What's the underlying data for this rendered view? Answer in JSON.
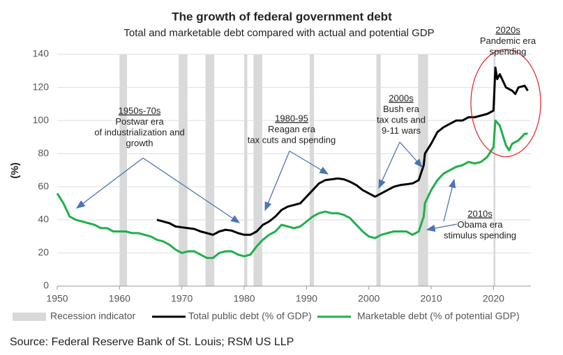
{
  "chart_data": {
    "type": "line",
    "title": "The growth of federal government debt",
    "subtitle": "Total and marketable debt compared with actual and potential GDP",
    "y_label": "(%)",
    "source": "Source: Federal Reserve Bank of St. Louis; RSM US LLP",
    "xlim": [
      1950,
      2026
    ],
    "xticks": [
      1950,
      1960,
      1970,
      1980,
      1990,
      2000,
      2010,
      2020
    ],
    "ylim": [
      0,
      140
    ],
    "yticks": [
      0,
      20,
      40,
      60,
      80,
      100,
      120,
      140
    ],
    "grid": true,
    "recessions": {
      "name": "Recession indicator",
      "color": "#d9d9d9",
      "periods": [
        [
          1960,
          1961.2
        ],
        [
          1969.5,
          1970.9
        ],
        [
          1973.8,
          1975.2
        ],
        [
          1980,
          1980.5
        ],
        [
          1981.5,
          1982.9
        ],
        [
          1990.5,
          1991.2
        ],
        [
          2001.2,
          2001.9
        ],
        [
          2007.9,
          2009.5
        ],
        [
          2020,
          2020.3
        ]
      ]
    },
    "series": [
      {
        "name": "Total public debt (% of GDP)",
        "color": "#000000",
        "x": [
          1966,
          1967,
          1968,
          1969,
          1970,
          1971,
          1972,
          1973,
          1974,
          1975,
          1976,
          1977,
          1978,
          1979,
          1980,
          1981,
          1982,
          1983,
          1984,
          1985,
          1986,
          1987,
          1988,
          1989,
          1990,
          1991,
          1992,
          1993,
          1994,
          1995,
          1996,
          1997,
          1998,
          1999,
          2000,
          2001,
          2002,
          2003,
          2004,
          2005,
          2006,
          2007,
          2008,
          2008.8,
          2009,
          2010,
          2011,
          2012,
          2013,
          2014,
          2015,
          2016,
          2017,
          2018,
          2019,
          2020,
          2020.3,
          2020.6,
          2021,
          2022,
          2023,
          2023.5,
          2024,
          2025,
          2025.5
        ],
        "values": [
          40,
          39,
          38,
          36,
          35.5,
          35,
          34.5,
          33,
          32,
          31,
          33,
          34,
          33.5,
          32,
          31,
          31,
          33,
          37,
          39,
          42,
          46,
          48,
          49,
          50,
          54,
          58,
          62,
          64,
          64.5,
          65,
          64.5,
          63,
          61,
          58,
          56,
          54,
          56,
          58,
          60,
          61,
          61.5,
          62,
          64,
          73,
          80,
          86,
          93,
          96,
          98,
          100,
          100,
          102,
          102,
          103,
          104,
          106,
          132,
          125,
          128,
          120,
          118,
          116,
          120,
          121,
          118
        ]
      },
      {
        "name": "Marketable debt (% of potential GDP)",
        "color": "#1fb04b",
        "x": [
          1950,
          1951,
          1952,
          1953,
          1954,
          1955,
          1956,
          1957,
          1958,
          1959,
          1960,
          1961,
          1962,
          1963,
          1964,
          1965,
          1966,
          1967,
          1968,
          1969,
          1970,
          1971,
          1972,
          1973,
          1974,
          1975,
          1976,
          1977,
          1978,
          1979,
          1980,
          1981,
          1982,
          1983,
          1984,
          1985,
          1986,
          1987,
          1988,
          1989,
          1990,
          1991,
          1992,
          1993,
          1994,
          1995,
          1996,
          1997,
          1998,
          1999,
          2000,
          2001,
          2002,
          2003,
          2004,
          2005,
          2006,
          2007,
          2008,
          2008.8,
          2009,
          2010,
          2011,
          2012,
          2013,
          2014,
          2015,
          2016,
          2017,
          2018,
          2019,
          2020,
          2020.3,
          2021,
          2022,
          2022.5,
          2023,
          2024,
          2025,
          2025.5
        ],
        "values": [
          56,
          50,
          42,
          40,
          39,
          38,
          37,
          35,
          35,
          33,
          33,
          33,
          32,
          32,
          31,
          30,
          28,
          27,
          25,
          22,
          20,
          21,
          21,
          19,
          17,
          17,
          20,
          21,
          21,
          19,
          18,
          19,
          24,
          28,
          31,
          33,
          37,
          36,
          35,
          36,
          39,
          42,
          44,
          45,
          44,
          44,
          43,
          41,
          37,
          33,
          30,
          29,
          31,
          32,
          33,
          33,
          33,
          31,
          33,
          42,
          50,
          58,
          64,
          68,
          70,
          72,
          73,
          75,
          74,
          75,
          78,
          84,
          100,
          97,
          85,
          82,
          86,
          88,
          92,
          92
        ]
      }
    ],
    "annotations": [
      [
        "1950s-70s",
        "Postwar era",
        "of industrialization and",
        "growth"
      ],
      [
        "1980-95",
        "Reagan era",
        "tax cuts and spending"
      ],
      [
        "2000s",
        "Bush era",
        "tax cuts and",
        "9-11 wars"
      ],
      [
        "2010s",
        "Obama era",
        "stimulus spending"
      ],
      [
        "2020s",
        "Pandemic era",
        "spending"
      ]
    ]
  }
}
